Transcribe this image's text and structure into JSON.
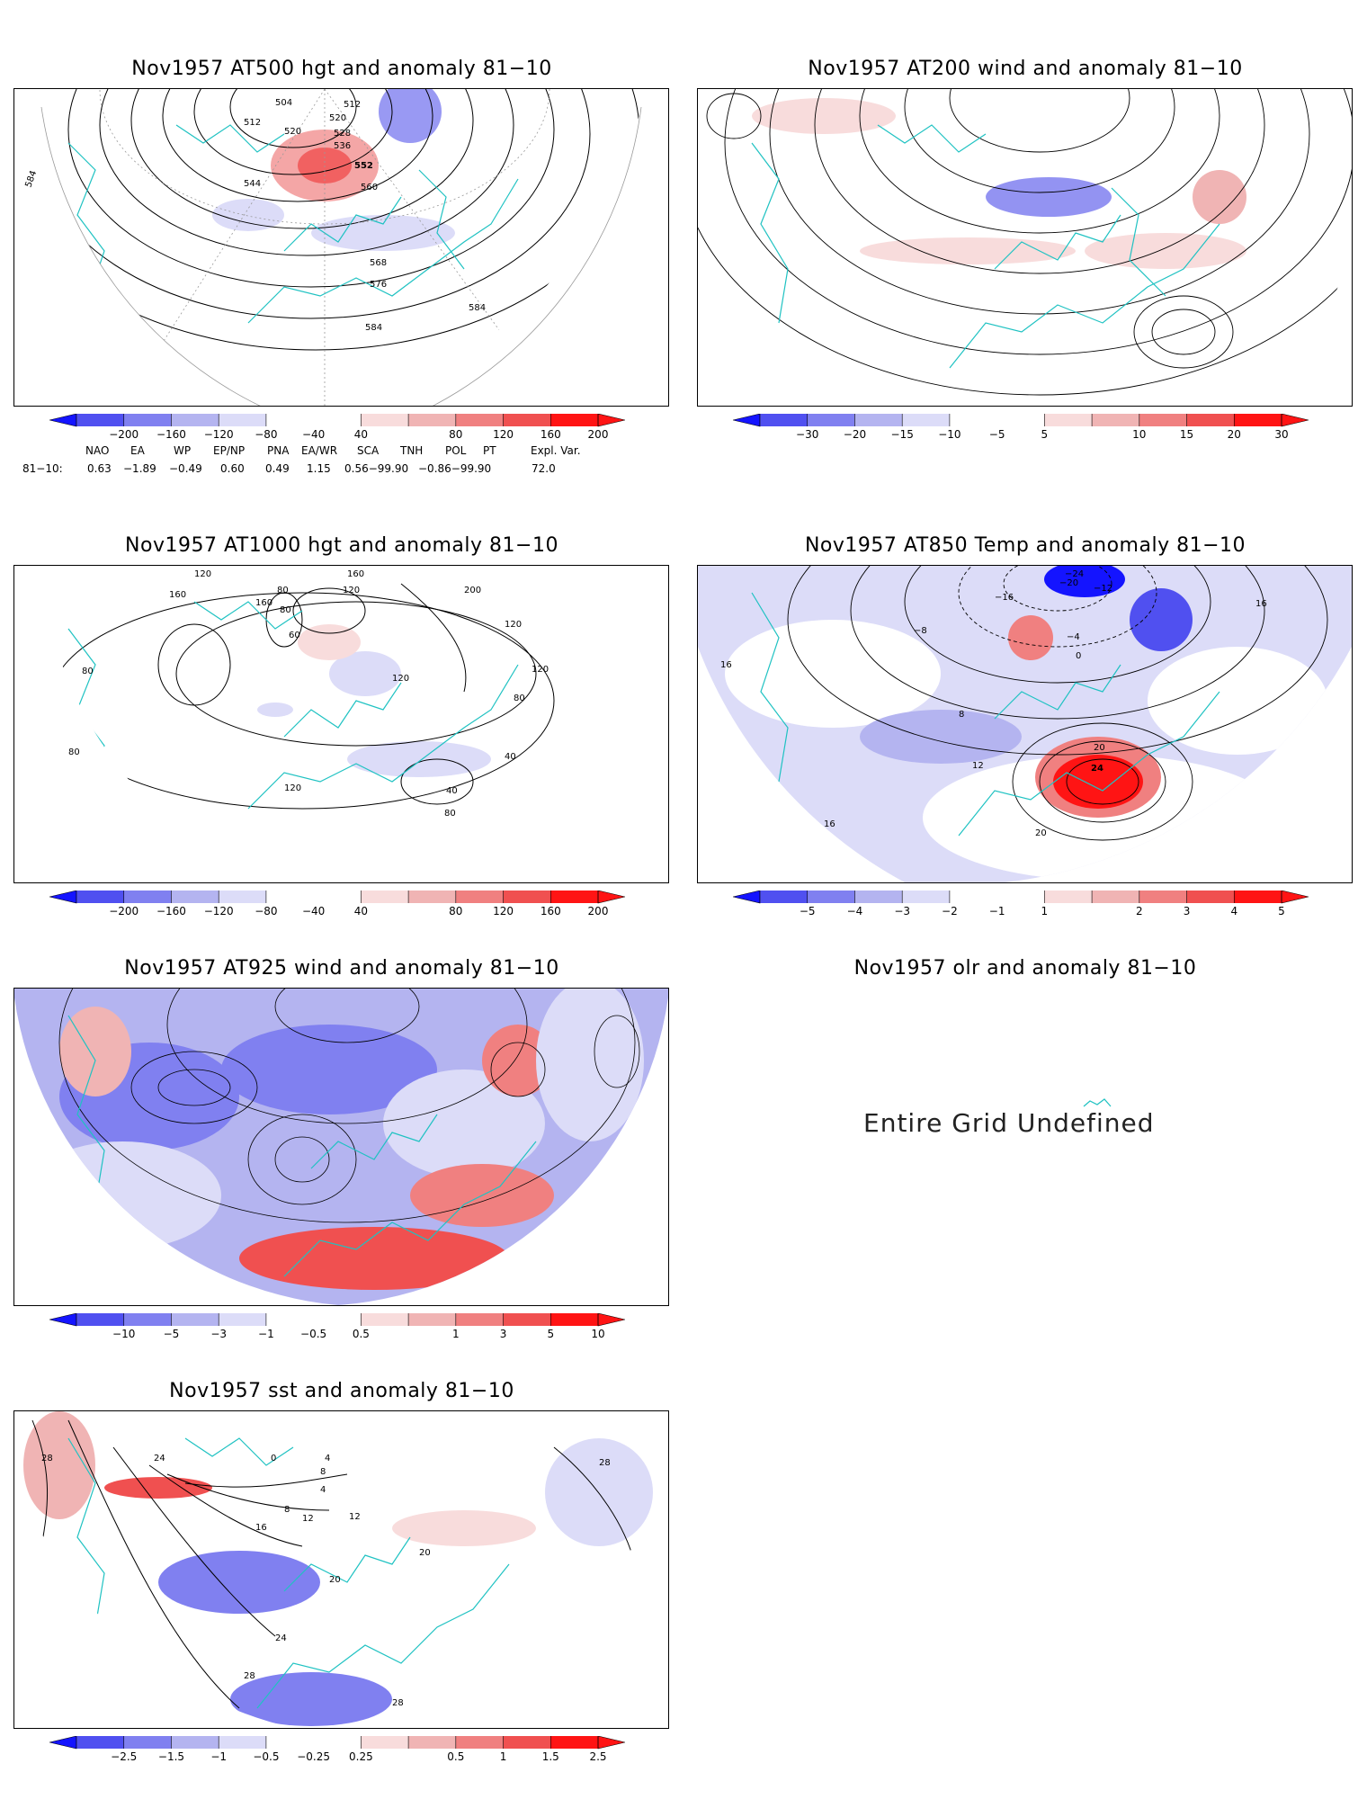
{
  "panels": [
    {
      "title": "Nov1957 AT500 hgt and anomaly 81−10",
      "contour_labels": [
        "504",
        "512",
        "520",
        "512",
        "520",
        "528",
        "536",
        "544",
        "552",
        "560",
        "568",
        "576",
        "584",
        "584",
        "584"
      ],
      "colorbar": [
        "−200",
        "−160",
        "−120",
        "−80",
        "−40",
        "40",
        "80",
        "120",
        "160",
        "200"
      ]
    },
    {
      "title": "Nov1957 AT200 wind and anomaly 81−10",
      "colorbar": [
        "−30",
        "−20",
        "−15",
        "−10",
        "−5",
        "5",
        "10",
        "15",
        "20",
        "30"
      ]
    },
    {
      "title": "Nov1957 AT1000 hgt and anomaly 81−10",
      "contour_labels": [
        "120",
        "160",
        "120",
        "80",
        "160",
        "80",
        "200",
        "60",
        "120",
        "160",
        "120",
        "120",
        "80",
        "40",
        "40",
        "80",
        "120",
        "80",
        "80"
      ],
      "colorbar": [
        "−200",
        "−160",
        "−120",
        "−80",
        "−40",
        "40",
        "80",
        "120",
        "160",
        "200"
      ]
    },
    {
      "title": "Nov1957 AT850 Temp and anomaly 81−10",
      "contour_labels": [
        "−24",
        "−20",
        "−16",
        "−12",
        "−8",
        "−4",
        "0",
        "8",
        "12",
        "16",
        "16",
        "20",
        "24",
        "20",
        "16"
      ],
      "colorbar": [
        "−5",
        "−4",
        "−3",
        "−2",
        "−1",
        "1",
        "2",
        "3",
        "4",
        "5"
      ]
    },
    {
      "title": "Nov1957 AT925 wind and anomaly 81−10",
      "colorbar": [
        "−10",
        "−5",
        "−3",
        "−1",
        "−0.5",
        "0.5",
        "1",
        "3",
        "5",
        "10"
      ]
    },
    {
      "title": "Nov1957 olr and anomaly 81−10",
      "message": "Entire Grid Undefined"
    },
    {
      "title": "Nov1957 sst and anomaly 81−10",
      "contour_labels": [
        "28",
        "24",
        "0",
        "4",
        "8",
        "4",
        "8",
        "12",
        "16",
        "20",
        "12",
        "20",
        "24",
        "28",
        "28",
        "28"
      ],
      "colorbar": [
        "−2.5",
        "−1.5",
        "−1",
        "−0.5",
        "−0.25",
        "0.25",
        "0.5",
        "1",
        "1.5",
        "2.5"
      ]
    }
  ],
  "indices": {
    "headers": [
      "NAO",
      "EA",
      "WP",
      "EP/NP",
      "PNA",
      "EA/WR",
      "SCA",
      "TNH",
      "POL",
      "PT",
      "Expl. Var."
    ],
    "row_label": "81−10:",
    "row_values": [
      "0.63",
      "−1.89",
      "−0.49",
      "0.60",
      "0.49",
      "1.15",
      "0.56−99.90",
      "−0.86−99.90",
      "72.0"
    ]
  },
  "colors": {
    "coastline": "#1fc2c2",
    "contour": "#000000",
    "grid": "#999999",
    "anom_neg": [
      "#1414ff",
      "#5050f0",
      "#8080f0",
      "#b4b4f0",
      "#dcdcf8"
    ],
    "anom_pos": [
      "#f8dcdc",
      "#f0b4b4",
      "#f08080",
      "#f05050",
      "#ff1414"
    ]
  }
}
